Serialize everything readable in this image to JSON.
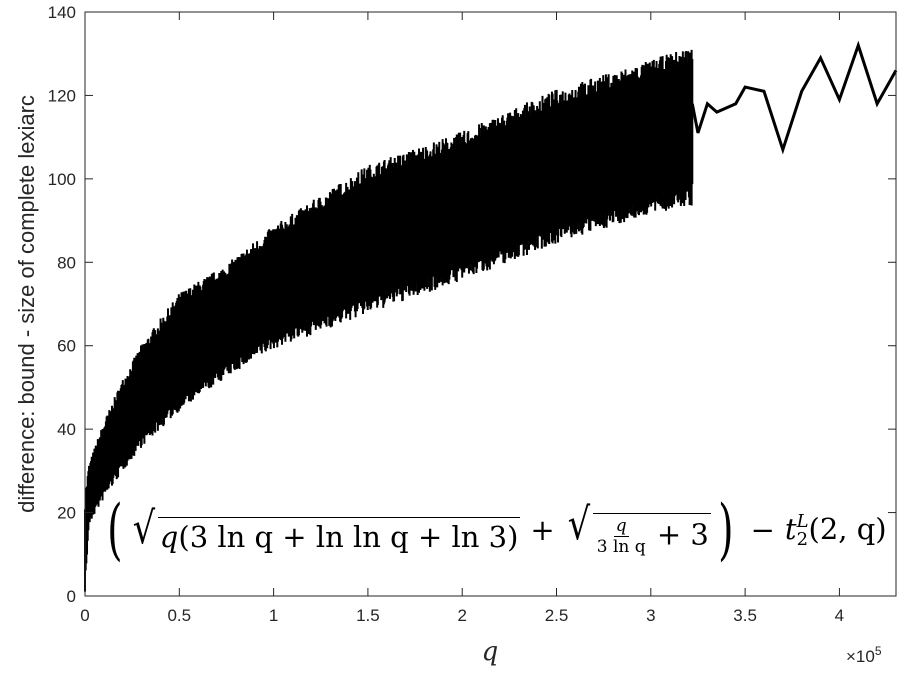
{
  "chart_data": {
    "type": "line",
    "xlabel": "q",
    "ylabel": "difference: bound - size of complete lexiarc",
    "x_multiplier": "×10",
    "x_multiplier_exp": "5",
    "xlim": [
      0,
      4.3
    ],
    "ylim": [
      0,
      140
    ],
    "x_unit_scale": 100000,
    "grid": false,
    "xticks": [
      "0",
      "0.5",
      "1",
      "1.5",
      "2",
      "2.5",
      "3",
      "3.5",
      "4"
    ],
    "yticks": [
      "0",
      "20",
      "40",
      "60",
      "80",
      "100",
      "120",
      "140"
    ],
    "series": [
      {
        "color": "#000000",
        "dense_band": {
          "x": [
            0.0,
            0.02,
            0.05,
            0.1,
            0.2,
            0.3,
            0.5,
            0.75,
            1.0,
            1.5,
            2.0,
            2.5,
            3.0,
            3.2
          ],
          "y_low": [
            3,
            18,
            21,
            25,
            32,
            38,
            47,
            55,
            62,
            71,
            79,
            88,
            95,
            97
          ],
          "y_high": [
            22,
            30,
            34,
            40,
            50,
            58,
            70,
            77,
            86,
            100,
            108,
            118,
            125,
            128
          ],
          "x_end": 3.22
        },
        "tail_points": {
          "x": [
            3.22,
            3.25,
            3.3,
            3.35,
            3.45,
            3.5,
            3.6,
            3.7,
            3.8,
            3.9,
            4.0,
            4.1,
            4.2,
            4.3
          ],
          "y": [
            118,
            111,
            118,
            116,
            118,
            122,
            121,
            107,
            121,
            129,
            119,
            132,
            118,
            126
          ]
        }
      }
    ],
    "annotation_parts": {
      "sqrt1_q": "q",
      "sqrt1_rest": "(3 ln q + ln ln q + ln 3)",
      "plus1": "+",
      "frac_num": "q",
      "frac_den": "3 ln q",
      "plus3": "+ 3",
      "minus": "−",
      "t_name": "t",
      "t_sup": "L",
      "t_sub": "2",
      "t_args": "(2, q)"
    }
  }
}
